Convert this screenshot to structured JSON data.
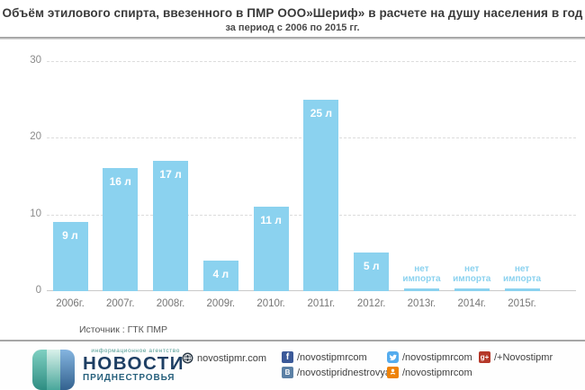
{
  "header": {
    "title": "Объём этилового спирта, ввезенного в ПМР ООО»Шериф»  в расчете на душу населения в год",
    "subtitle": "за период с 2006 по 2015 гг."
  },
  "chart_data": {
    "type": "bar",
    "title": "Объём этилового спирта, ввезенного в ПМР ООО»Шериф» в расчете на душу населения в год",
    "subtitle": "за период с 2006 по 2015 гг.",
    "categories": [
      "2006г.",
      "2007г.",
      "2008г.",
      "2009г.",
      "2010г.",
      "2011г.",
      "2012г.",
      "2013г.",
      "2014г.",
      "2015г."
    ],
    "values": [
      9,
      16,
      17,
      4,
      11,
      25,
      5,
      0,
      0,
      0
    ],
    "bar_labels": [
      "9 л",
      "16 л",
      "17 л",
      "4 л",
      "11 л",
      "25 л",
      "5 л",
      "нет импорта",
      "нет импорта",
      "нет импорта"
    ],
    "unit": "л",
    "no_import_text": "нет импорта",
    "xlabel": "",
    "ylabel": "",
    "ylim": [
      0,
      30
    ],
    "yticks": [
      0,
      10,
      20,
      30
    ],
    "grid": "dashed-horizontal",
    "legend": "none",
    "bar_color": "#8BD2EF"
  },
  "source": {
    "text": "Источник : ГТК ПМР"
  },
  "footer": {
    "logo": {
      "tagline": "информационное агентство",
      "name": "НОВОСТИ",
      "region": "ПРИДНЕСТРОВЬЯ"
    },
    "links": [
      {
        "icon": "globe",
        "text": "novostipmr.com",
        "color": "#2c3a47"
      },
      {
        "icon": "facebook",
        "text": "/novostipmrcom",
        "color": "#3b5998"
      },
      {
        "icon": "vk",
        "text": "/novostipridnestrovya",
        "color": "#5b80a5"
      },
      {
        "icon": "twitter",
        "text": "/novostipmrcom",
        "color": "#55acee"
      },
      {
        "icon": "odnoklassniki",
        "text": "/novostipmrcom",
        "color": "#ee8208"
      },
      {
        "icon": "google-plus",
        "text": "/+Novostipmr",
        "color": "#b5382a"
      }
    ]
  }
}
